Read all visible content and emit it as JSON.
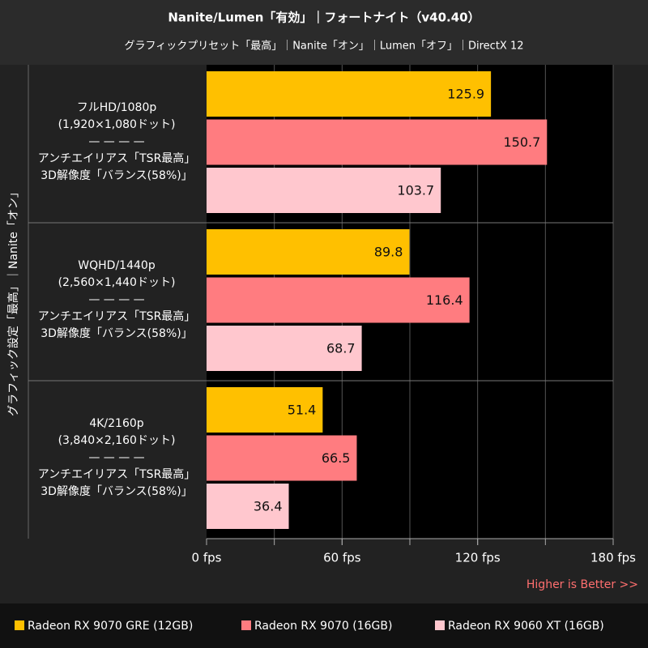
{
  "chart_data": {
    "type": "barh",
    "title": "Nanite/Lumen「有効」｜フォートナイト（v40.40）",
    "subtitle": "グラフィックプリセット「最高」｜Nanite「オン」｜Lumen「オフ」｜DirectX 12",
    "ylabel": "グラフィック設定「最高」｜Nanite「オン」",
    "annotation": "Higher is Better >>",
    "categories": [
      "フルHD/1080p\n(1,920×1,080ドット)\n— — — —\nアンチエイリアス「TSR最高」\n3D解像度「バランス(58%)」",
      "WQHD/1440p\n(2,560×1,440ドット)\n— — — —\nアンチエイリアス「TSR最高」\n3D解像度「バランス(58%)」",
      "4K/2160p\n(3,840×2,160ドット)\n— — — —\nアンチエイリアス「TSR最高」\n3D解像度「バランス(58%)」"
    ],
    "series": [
      {
        "name": "Radeon RX 9070 GRE (12GB)",
        "color": "#ffc000",
        "values": [
          125.9,
          89.8,
          51.4
        ]
      },
      {
        "name": "Radeon RX 9070 (16GB)",
        "color": "#ff7c80",
        "values": [
          150.7,
          116.4,
          66.5
        ]
      },
      {
        "name": "Radeon RX 9060 XT (16GB)",
        "color": "#ffc7ce",
        "values": [
          103.7,
          68.7,
          36.4
        ]
      }
    ],
    "xlim": [
      0,
      180
    ],
    "xticks": [
      {
        "value": 0,
        "label": "0 fps"
      },
      {
        "value": 60,
        "label": "60 fps"
      },
      {
        "value": 120,
        "label": "120 fps"
      },
      {
        "value": 180,
        "label": "180 fps"
      }
    ],
    "xgrid": [
      30,
      60,
      90,
      120,
      150,
      180
    ],
    "grid": true
  }
}
